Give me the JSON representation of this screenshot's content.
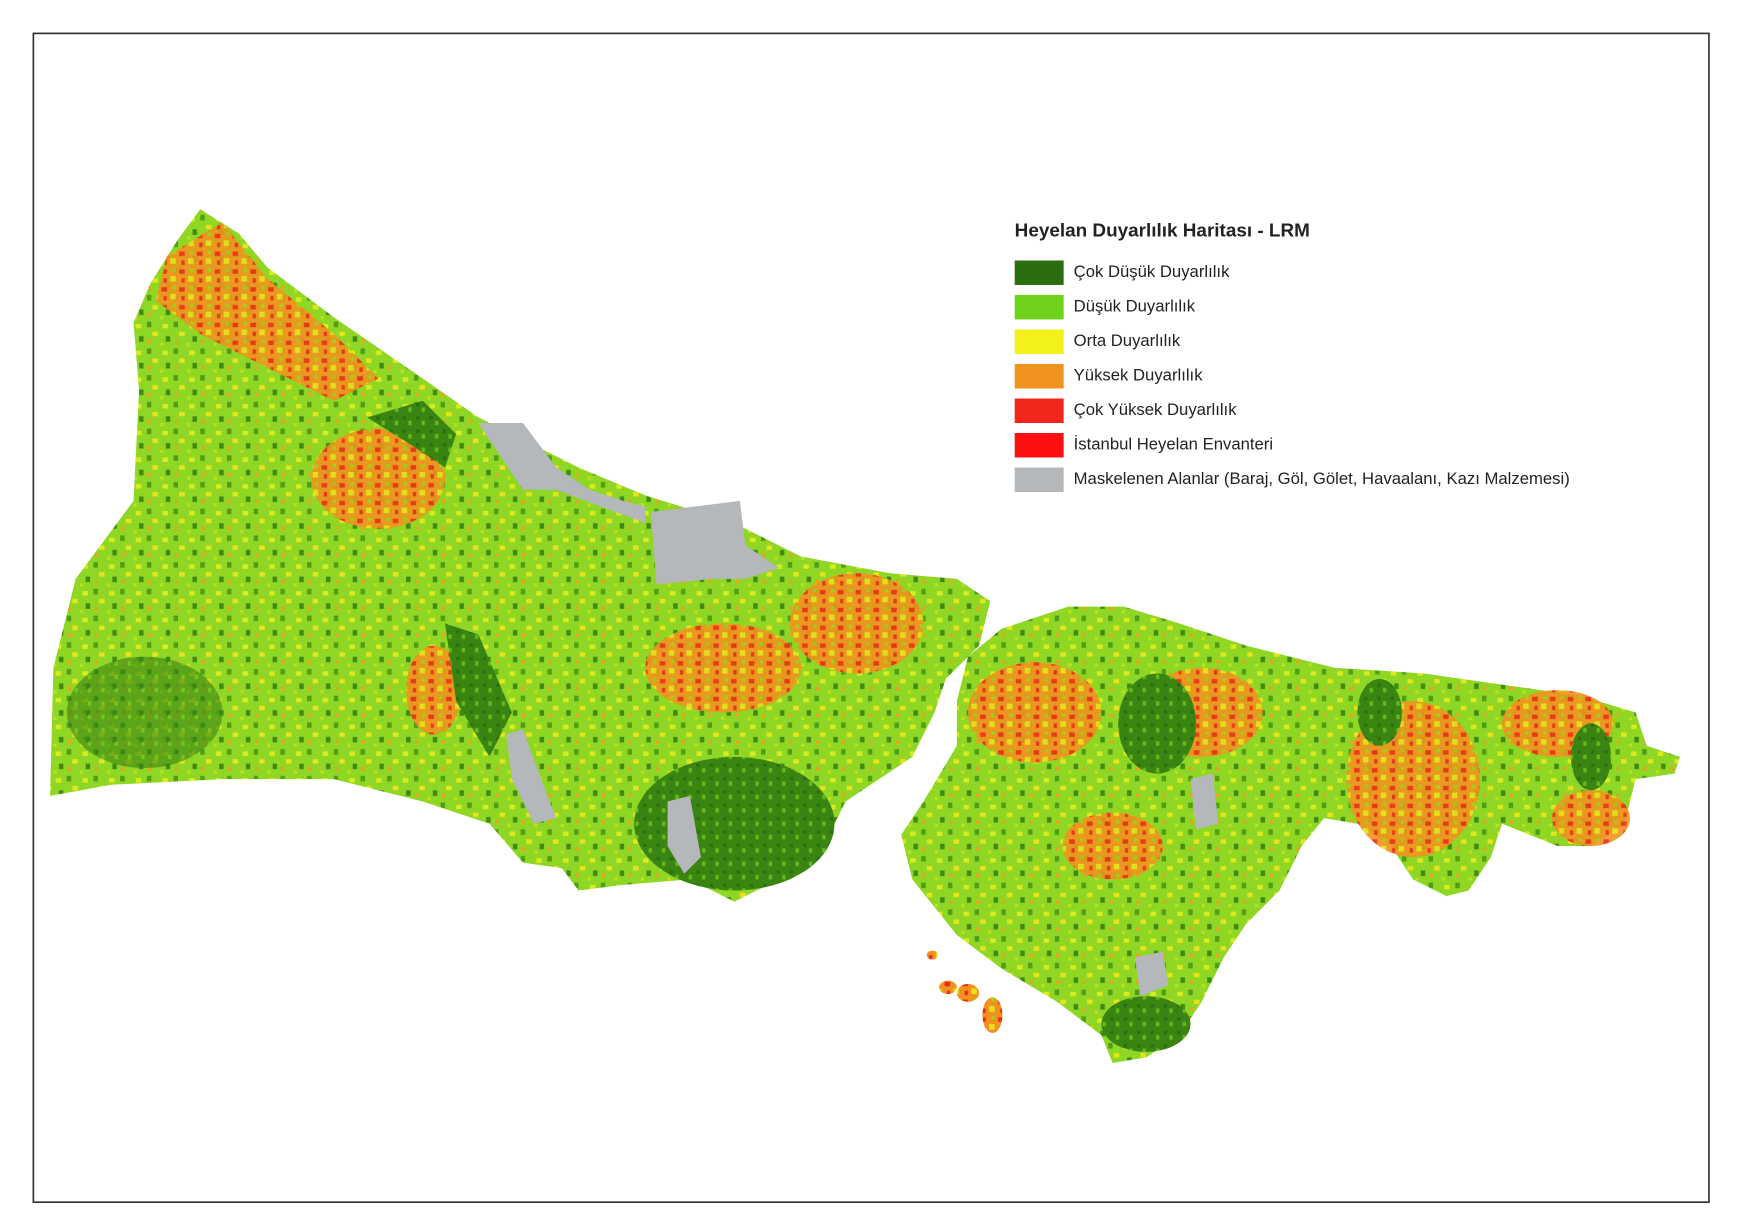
{
  "legend": {
    "title": "Heyelan Duyarlılık Haritası - LRM",
    "items": [
      {
        "label": "Çok Düşük Duyarlılık",
        "color": "#2a6e10"
      },
      {
        "label": "Düşük Duyarlılık",
        "color": "#6fd21a"
      },
      {
        "label": "Orta Duyarlılık",
        "color": "#f2f21a"
      },
      {
        "label": "Yüksek Duyarlılık",
        "color": "#f2921e"
      },
      {
        "label": "Çok Yüksek Duyarlılık",
        "color": "#f2261a"
      },
      {
        "label": "İstanbul Heyelan Envanteri",
        "color": "#ff1010"
      },
      {
        "label": "Maskelenen Alanlar (Baraj, Göl, Gölet, Havaalanı, Kazı Malzemesi)",
        "color": "#b4b8ba"
      }
    ]
  }
}
